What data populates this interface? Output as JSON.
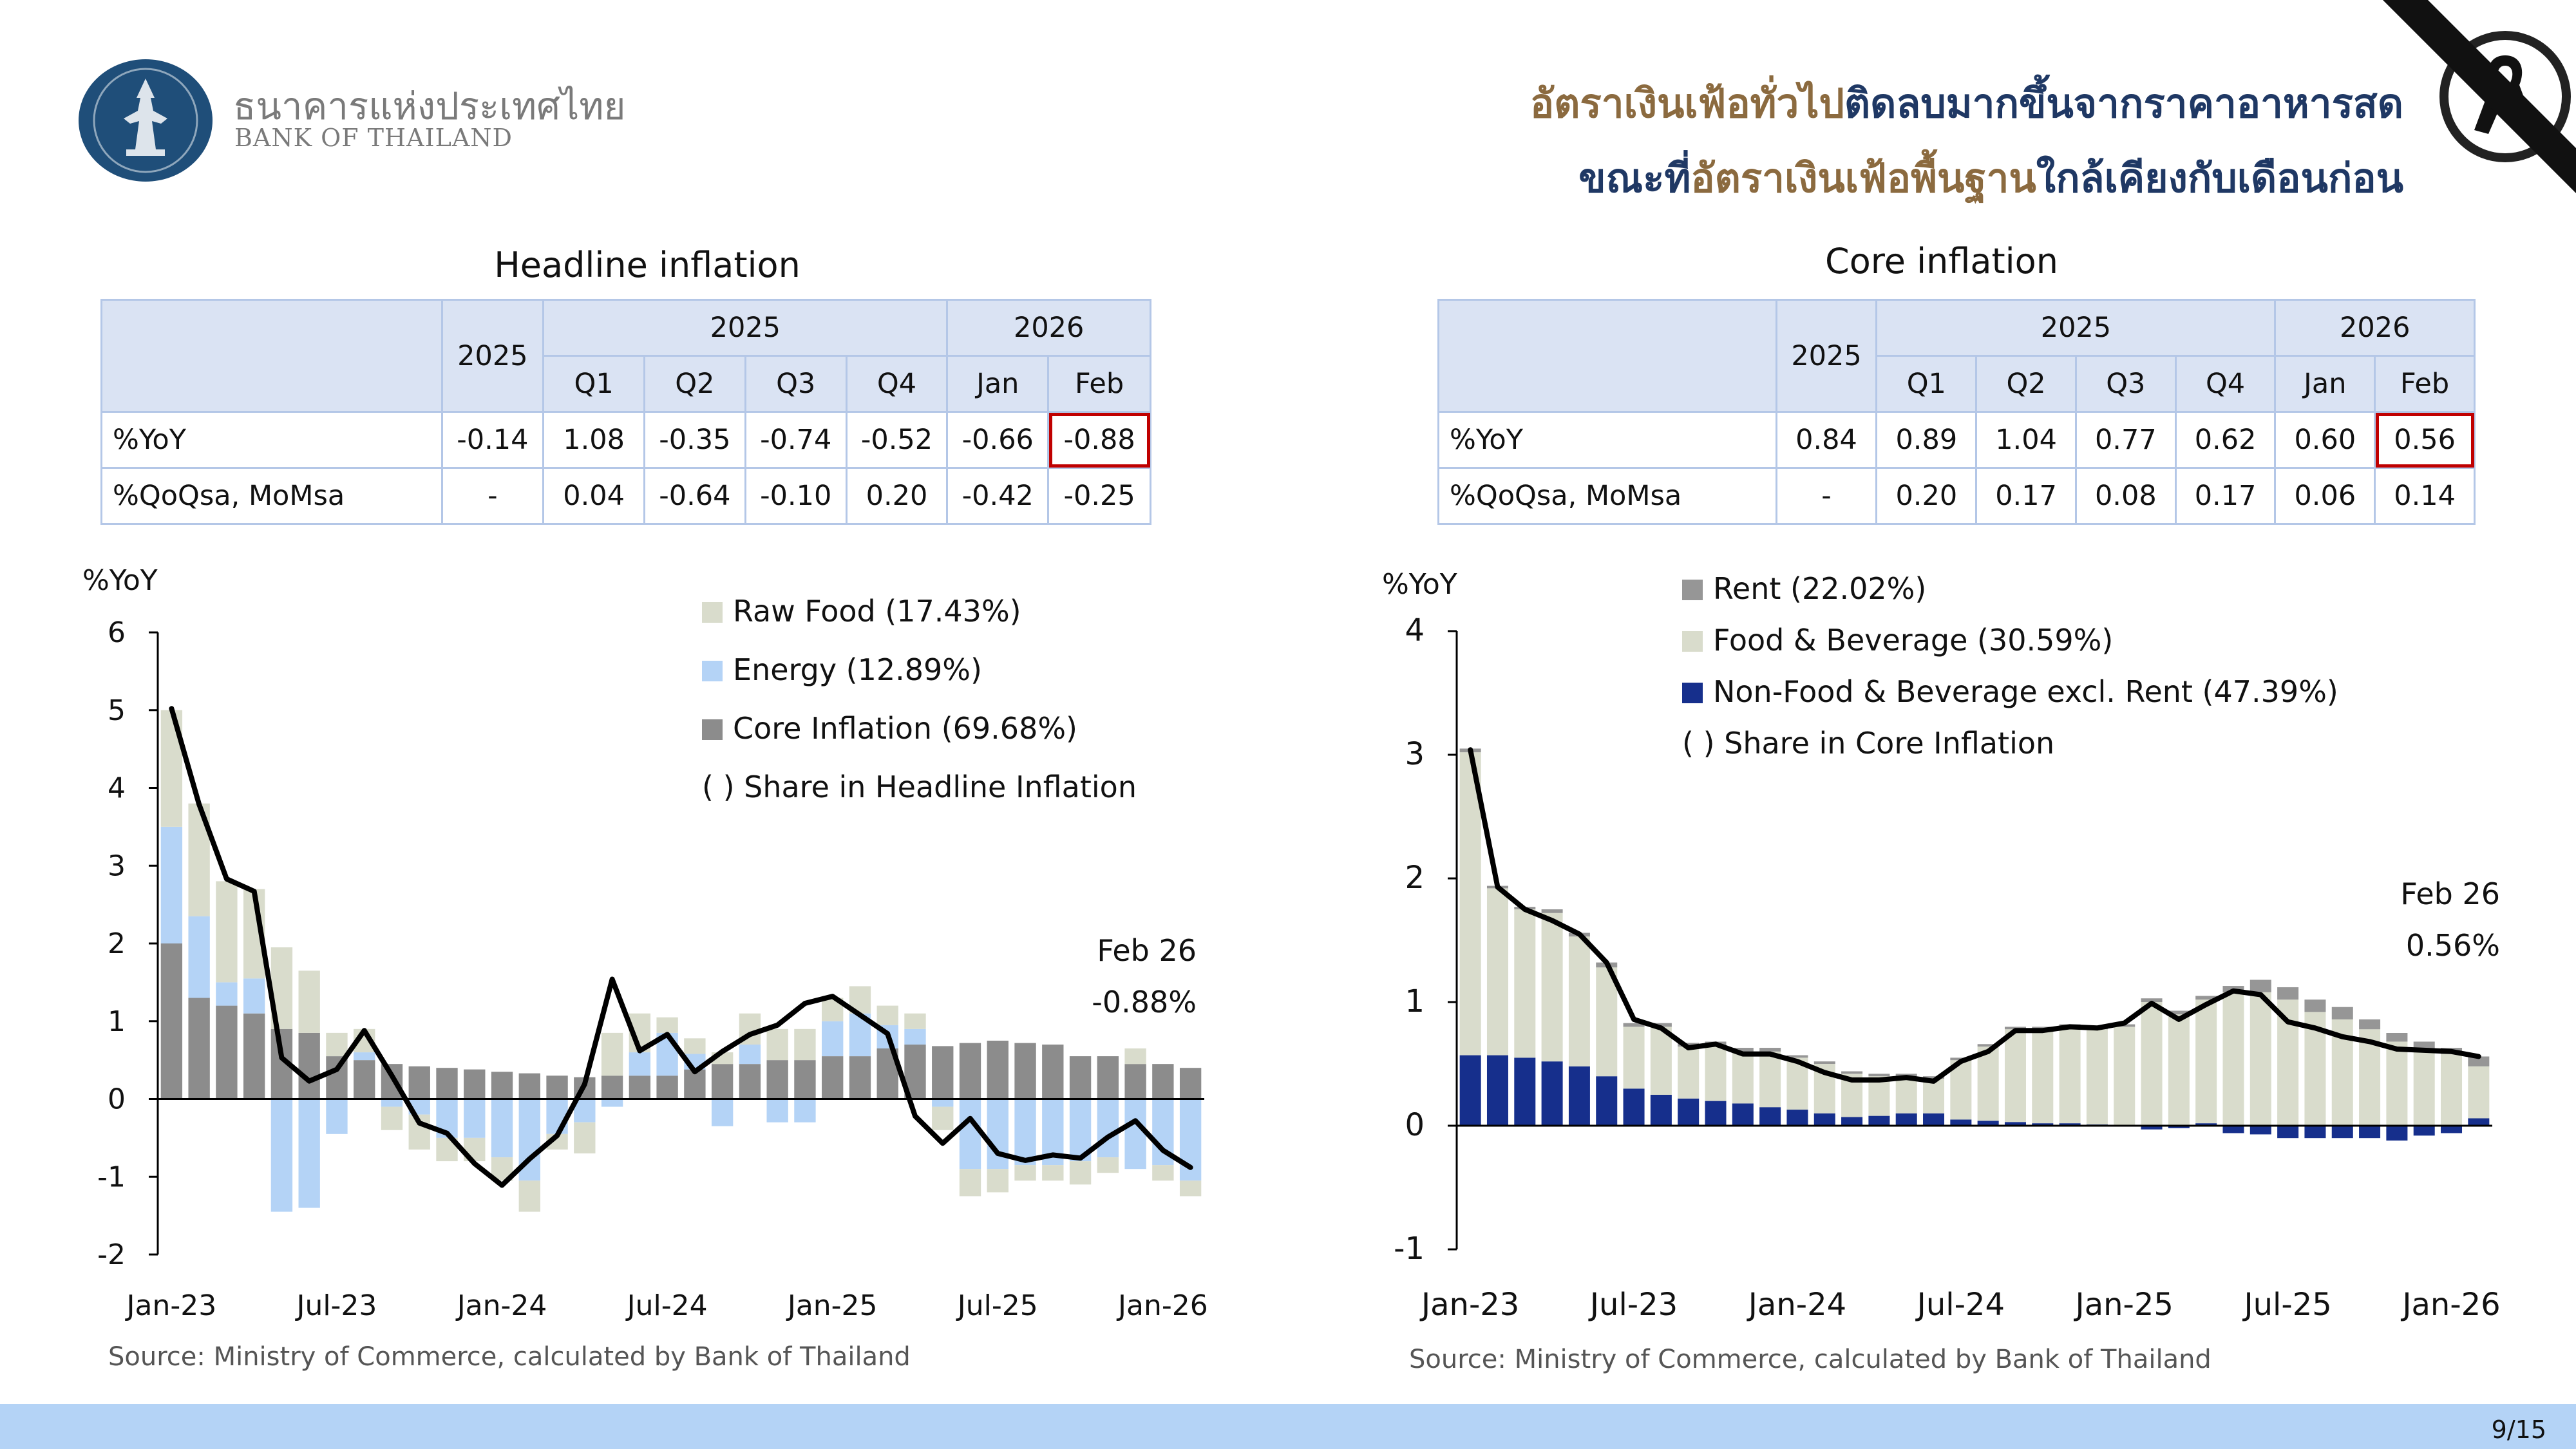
{
  "header": {
    "bank_name_th": "ธนาคารแห่งประเทศไทย",
    "bank_name_en": "BANK OF THAILAND",
    "headline_line1_a": "อัตราเงินเฟ้อทั่วไป",
    "headline_line1_b": "ติดลบมากขึ้นจากราคาอาหารสด",
    "headline_line2_a": "ขณะที่",
    "headline_line2_b": "อัตราเงินเฟ้อพื้นฐาน",
    "headline_line2_c": "ใกล้เคียงกับเดือนก่อน",
    "colors": {
      "brown": "#8b6a3f",
      "navy": "#1f3864"
    }
  },
  "headline_panel": {
    "title": "Headline inflation",
    "table": {
      "year_cols": [
        "2025",
        "2025",
        "2026"
      ],
      "sub_cols": [
        "Q1",
        "Q2",
        "Q3",
        "Q4",
        "Jan",
        "Feb"
      ],
      "rows": [
        {
          "label": "%YoY",
          "annual": "-0.14",
          "values": [
            "1.08",
            "-0.35",
            "-0.74",
            "-0.52",
            "-0.66",
            "-0.88"
          ]
        },
        {
          "label": "%QoQsa, MoMsa",
          "annual": "-",
          "values": [
            "0.04",
            "-0.64",
            "-0.10",
            "0.20",
            "-0.42",
            "-0.25"
          ]
        }
      ]
    },
    "y_unit": "%YoY",
    "annotation": {
      "label": "Feb 26",
      "value": "-0.88%"
    },
    "source": "Source: Ministry of Commerce, calculated by Bank of Thailand"
  },
  "core_panel": {
    "title": "Core inflation",
    "table": {
      "year_cols": [
        "2025",
        "2025",
        "2026"
      ],
      "sub_cols": [
        "Q1",
        "Q2",
        "Q3",
        "Q4",
        "Jan",
        "Feb"
      ],
      "rows": [
        {
          "label": "%YoY",
          "annual": "0.84",
          "values": [
            "0.89",
            "1.04",
            "0.77",
            "0.62",
            "0.60",
            "0.56"
          ]
        },
        {
          "label": "%QoQsa, MoMsa",
          "annual": "-",
          "values": [
            "0.20",
            "0.17",
            "0.08",
            "0.17",
            "0.06",
            "0.14"
          ]
        }
      ]
    },
    "y_unit": "%YoY",
    "annotation": {
      "label": "Feb 26",
      "value": "0.56%"
    },
    "source": "Source: Ministry of Commerce, calculated by Bank of Thailand"
  },
  "chart_data": [
    {
      "type": "bar",
      "stacked": true,
      "categories": [
        "Jan-23",
        "Feb-23",
        "Mar-23",
        "Apr-23",
        "May-23",
        "Jun-23",
        "Jul-23",
        "Aug-23",
        "Sep-23",
        "Oct-23",
        "Nov-23",
        "Dec-23",
        "Jan-24",
        "Feb-24",
        "Mar-24",
        "Apr-24",
        "May-24",
        "Jun-24",
        "Jul-24",
        "Aug-24",
        "Sep-24",
        "Oct-24",
        "Nov-24",
        "Dec-24",
        "Jan-25",
        "Feb-25",
        "Mar-25",
        "Apr-25",
        "May-25",
        "Jun-25",
        "Jul-25",
        "Aug-25",
        "Sep-25",
        "Oct-25",
        "Nov-25",
        "Dec-25",
        "Jan-26",
        "Feb-26"
      ],
      "x_tick_labels": [
        "Jan-23",
        "Jul-23",
        "Jan-24",
        "Jul-24",
        "Jan-25",
        "Jul-25",
        "Jan-26"
      ],
      "series": [
        {
          "name": "Core Inflation (69.68%)",
          "color": "#8c8c8c",
          "values": [
            2.0,
            1.3,
            1.2,
            1.1,
            0.9,
            0.85,
            0.55,
            0.5,
            0.45,
            0.42,
            0.4,
            0.38,
            0.35,
            0.33,
            0.3,
            0.28,
            0.3,
            0.3,
            0.3,
            0.38,
            0.45,
            0.45,
            0.5,
            0.5,
            0.55,
            0.55,
            0.65,
            0.7,
            0.68,
            0.72,
            0.75,
            0.72,
            0.7,
            0.55,
            0.55,
            0.45,
            0.45,
            0.4
          ]
        },
        {
          "name": "Energy (12.89%)",
          "color": "#b4d3f6",
          "values": [
            1.5,
            1.05,
            0.3,
            0.45,
            -1.45,
            -1.4,
            -0.45,
            0.1,
            -0.1,
            -0.2,
            -0.5,
            -0.5,
            -0.75,
            -1.05,
            -0.45,
            -0.3,
            -0.1,
            0.3,
            0.55,
            0.2,
            -0.35,
            0.25,
            -0.3,
            -0.3,
            0.45,
            0.55,
            0.3,
            0.2,
            -0.1,
            -0.9,
            -0.9,
            -0.85,
            -0.85,
            -0.8,
            -0.75,
            -0.9,
            -0.85,
            -1.05
          ]
        },
        {
          "name": "Raw Food (17.43%)",
          "color": "#d9dccc",
          "values": [
            1.5,
            1.45,
            1.3,
            1.15,
            1.05,
            0.8,
            0.3,
            0.3,
            -0.3,
            -0.45,
            -0.3,
            -0.3,
            -0.3,
            -0.4,
            -0.2,
            -0.4,
            0.55,
            0.5,
            0.2,
            0.2,
            0.15,
            0.4,
            0.4,
            0.4,
            0.3,
            0.35,
            0.25,
            0.2,
            -0.3,
            -0.35,
            -0.3,
            -0.2,
            -0.2,
            -0.3,
            -0.2,
            0.2,
            -0.2,
            -0.2
          ]
        },
        {
          "name": "Headline",
          "type": "line",
          "color": "#000000",
          "values": [
            5.02,
            3.79,
            2.83,
            2.67,
            0.53,
            0.23,
            0.38,
            0.88,
            0.3,
            -0.31,
            -0.44,
            -0.83,
            -1.11,
            -0.77,
            -0.47,
            0.19,
            1.54,
            0.62,
            0.83,
            0.35,
            0.61,
            0.83,
            0.95,
            1.23,
            1.32,
            1.08,
            0.84,
            -0.22,
            -0.57,
            -0.25,
            -0.7,
            -0.79,
            -0.72,
            -0.76,
            -0.49,
            -0.28,
            -0.66,
            -0.88
          ]
        }
      ],
      "ylabel": "%YoY",
      "ylim": [
        -2,
        6
      ],
      "yticks": [
        -2,
        -1,
        0,
        1,
        2,
        3,
        4,
        5,
        6
      ],
      "legend_note": "( ) Share in Headline Inflation",
      "legend": "top-right"
    },
    {
      "type": "bar",
      "stacked": true,
      "categories": [
        "Jan-23",
        "Feb-23",
        "Mar-23",
        "Apr-23",
        "May-23",
        "Jun-23",
        "Jul-23",
        "Aug-23",
        "Sep-23",
        "Oct-23",
        "Nov-23",
        "Dec-23",
        "Jan-24",
        "Feb-24",
        "Mar-24",
        "Apr-24",
        "May-24",
        "Jun-24",
        "Jul-24",
        "Aug-24",
        "Sep-24",
        "Oct-24",
        "Nov-24",
        "Dec-24",
        "Jan-25",
        "Feb-25",
        "Mar-25",
        "Apr-25",
        "May-25",
        "Jun-25",
        "Jul-25",
        "Aug-25",
        "Sep-25",
        "Oct-25",
        "Nov-25",
        "Dec-25",
        "Jan-26",
        "Feb-26"
      ],
      "x_tick_labels": [
        "Jan-23",
        "Jul-23",
        "Jan-24",
        "Jul-24",
        "Jan-25",
        "Jul-25",
        "Jan-26"
      ],
      "series": [
        {
          "name": "Non-Food & Beverage excl. Rent (47.39%)",
          "color": "#162f8c",
          "values": [
            0.57,
            0.57,
            0.55,
            0.52,
            0.48,
            0.4,
            0.3,
            0.25,
            0.22,
            0.2,
            0.18,
            0.15,
            0.13,
            0.1,
            0.07,
            0.08,
            0.1,
            0.1,
            0.05,
            0.04,
            0.03,
            0.02,
            0.02,
            0.01,
            0.0,
            -0.03,
            -0.02,
            0.02,
            -0.06,
            -0.07,
            -0.1,
            -0.1,
            -0.1,
            -0.1,
            -0.12,
            -0.08,
            -0.06,
            0.06
          ]
        },
        {
          "name": "Food & Beverage (30.59%)",
          "color": "#d9dccc",
          "values": [
            2.45,
            1.35,
            1.2,
            1.2,
            1.05,
            0.88,
            0.5,
            0.55,
            0.42,
            0.45,
            0.42,
            0.45,
            0.42,
            0.4,
            0.35,
            0.32,
            0.3,
            0.28,
            0.48,
            0.6,
            0.75,
            0.76,
            0.78,
            0.77,
            0.8,
            1.0,
            0.9,
            1.0,
            1.08,
            1.08,
            1.02,
            0.92,
            0.86,
            0.78,
            0.68,
            0.62,
            0.58,
            0.42
          ]
        },
        {
          "name": "Rent (22.02%)",
          "color": "#969696",
          "values": [
            0.03,
            0.02,
            0.02,
            0.03,
            0.03,
            0.04,
            0.03,
            0.03,
            0.03,
            0.03,
            0.03,
            0.03,
            0.02,
            0.02,
            0.02,
            0.02,
            0.02,
            0.02,
            0.02,
            0.02,
            0.02,
            0.02,
            0.02,
            0.02,
            0.02,
            0.03,
            0.03,
            0.03,
            0.05,
            0.1,
            0.1,
            0.1,
            0.1,
            0.08,
            0.07,
            0.06,
            0.05,
            0.08
          ]
        },
        {
          "name": "Core",
          "type": "line",
          "color": "#000000",
          "values": [
            3.04,
            1.93,
            1.75,
            1.66,
            1.55,
            1.32,
            0.86,
            0.79,
            0.63,
            0.66,
            0.58,
            0.58,
            0.52,
            0.43,
            0.37,
            0.37,
            0.39,
            0.36,
            0.52,
            0.6,
            0.77,
            0.77,
            0.8,
            0.79,
            0.83,
            0.99,
            0.86,
            0.98,
            1.09,
            1.06,
            0.84,
            0.79,
            0.72,
            0.68,
            0.62,
            0.61,
            0.6,
            0.56
          ]
        }
      ],
      "ylabel": "%YoY",
      "ylim": [
        -1,
        4
      ],
      "yticks": [
        -1,
        0,
        1,
        2,
        3,
        4
      ],
      "legend_note": "( ) Share in Core Inflation",
      "legend": "top-left"
    }
  ],
  "page": {
    "number": "9/15"
  }
}
